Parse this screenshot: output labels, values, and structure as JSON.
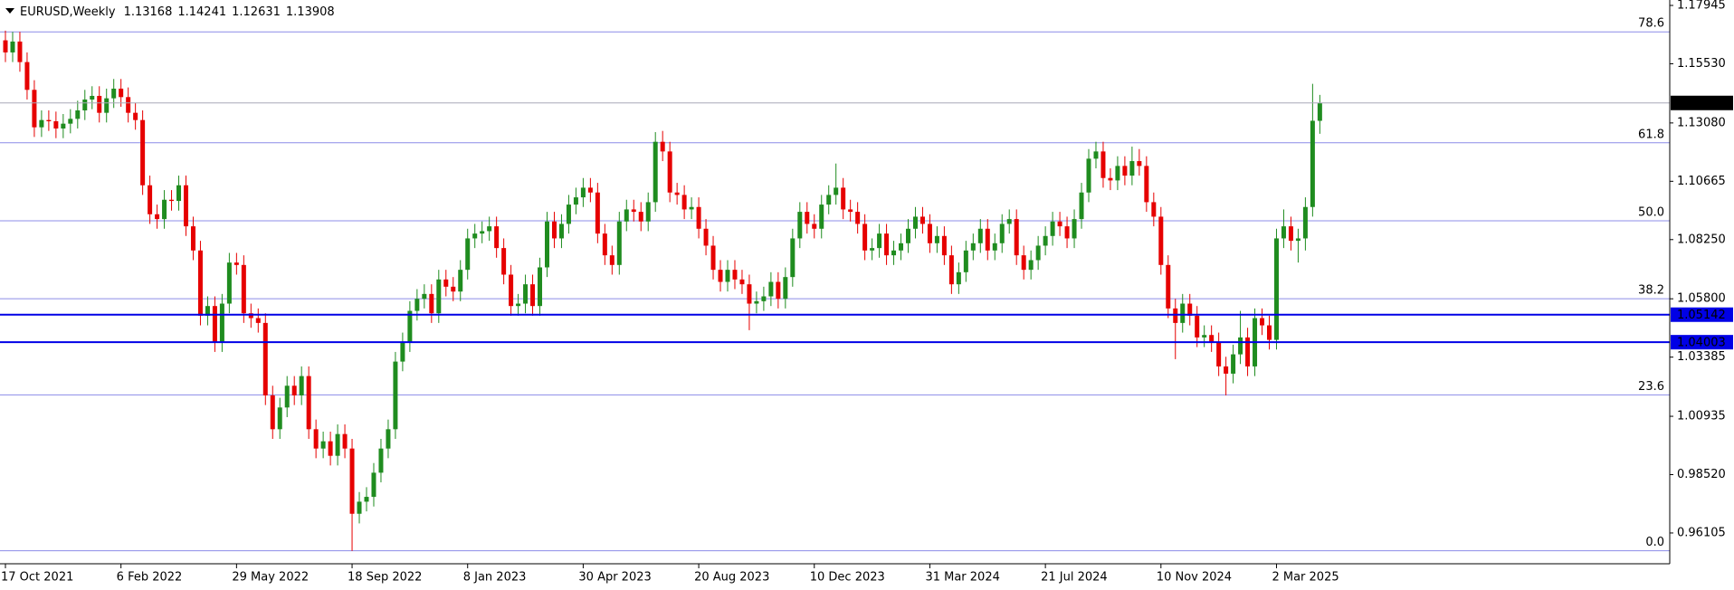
{
  "chart_data": {
    "type": "candlestick",
    "title": "EURUSD,Weekly",
    "categories": [
      "17 Oct 2021",
      null,
      null,
      null,
      null,
      null,
      null,
      null,
      null,
      null,
      null,
      null,
      null,
      null,
      null,
      null,
      "6 Feb 2022",
      null,
      null,
      null,
      null,
      null,
      null,
      null,
      null,
      null,
      null,
      null,
      null,
      null,
      null,
      null,
      "29 May 2022",
      null,
      null,
      null,
      null,
      null,
      null,
      null,
      null,
      null,
      null,
      null,
      null,
      null,
      null,
      null,
      "18 Sep 2022",
      null,
      null,
      null,
      null,
      null,
      null,
      null,
      null,
      null,
      null,
      null,
      null,
      null,
      null,
      null,
      "8 Jan 2023",
      null,
      null,
      null,
      null,
      null,
      null,
      null,
      null,
      null,
      null,
      null,
      null,
      null,
      null,
      null,
      "30 Apr 2023",
      null,
      null,
      null,
      null,
      null,
      null,
      null,
      null,
      null,
      null,
      null,
      null,
      null,
      null,
      null,
      "20 Aug 2023",
      null,
      null,
      null,
      null,
      null,
      null,
      null,
      null,
      null,
      null,
      null,
      null,
      null,
      null,
      null,
      "10 Dec 2023",
      null,
      null,
      null,
      null,
      null,
      null,
      null,
      null,
      null,
      null,
      null,
      null,
      null,
      null,
      null,
      "31 Mar 2024",
      null,
      null,
      null,
      null,
      null,
      null,
      null,
      null,
      null,
      null,
      null,
      null,
      null,
      null,
      null,
      "21 Jul 2024",
      null,
      null,
      null,
      null,
      null,
      null,
      null,
      null,
      null,
      null,
      null,
      null,
      null,
      null,
      null,
      "10 Nov 2024",
      null,
      null,
      null,
      null,
      null,
      null,
      null,
      null,
      null,
      null,
      null,
      null,
      null,
      null,
      null,
      "2 Mar 2025",
      null,
      null,
      null,
      null,
      null,
      null
    ],
    "open": [
      1.165,
      1.16,
      1.1645,
      1.156,
      1.1445,
      1.129,
      1.132,
      1.1315,
      1.1285,
      1.1305,
      1.1325,
      1.136,
      1.1405,
      1.142,
      1.135,
      1.141,
      1.145,
      1.1415,
      1.135,
      1.132,
      1.105,
      1.093,
      1.091,
      1.099,
      1.0985,
      1.105,
      1.088,
      1.078,
      1.051,
      1.055,
      1.04,
      1.056,
      1.073,
      1.072,
      1.052,
      1.05,
      1.048,
      1.018,
      1.004,
      1.013,
      1.022,
      1.018,
      1.026,
      1.004,
      0.996,
      0.999,
      0.993,
      1.002,
      0.996,
      0.969,
      0.974,
      0.976,
      0.986,
      0.996,
      1.004,
      1.032,
      1.04,
      1.053,
      1.058,
      1.06,
      1.052,
      1.066,
      1.063,
      1.061,
      1.07,
      1.083,
      1.085,
      1.086,
      1.088,
      1.079,
      1.068,
      1.055,
      1.056,
      1.064,
      1.055,
      1.071,
      1.09,
      1.083,
      1.089,
      1.097,
      1.1,
      1.104,
      1.102,
      1.085,
      1.076,
      1.072,
      1.09,
      1.095,
      1.094,
      1.09,
      1.098,
      1.123,
      1.119,
      1.102,
      1.101,
      1.095,
      1.096,
      1.087,
      1.08,
      1.07,
      1.065,
      1.07,
      1.066,
      1.064,
      1.056,
      1.057,
      1.059,
      1.065,
      1.058,
      1.067,
      1.083,
      1.094,
      1.089,
      1.087,
      1.097,
      1.101,
      1.104,
      1.095,
      1.094,
      1.089,
      1.078,
      1.079,
      1.085,
      1.076,
      1.078,
      1.081,
      1.087,
      1.092,
      1.089,
      1.081,
      1.084,
      1.076,
      1.064,
      1.069,
      1.078,
      1.081,
      1.087,
      1.078,
      1.081,
      1.089,
      1.091,
      1.076,
      1.07,
      1.074,
      1.08,
      1.084,
      1.09,
      1.088,
      1.083,
      1.091,
      1.102,
      1.116,
      1.119,
      1.108,
      1.107,
      1.113,
      1.109,
      1.115,
      1.113,
      1.098,
      1.092,
      1.072,
      1.054,
      1.048,
      1.056,
      1.051,
      1.042,
      1.043,
      1.04,
      1.03,
      1.027,
      1.035,
      1.042,
      1.03,
      1.05,
      1.047,
      1.041,
      1.083,
      1.088,
      1.082,
      1.083,
      1.096,
      1.13168
    ],
    "high": [
      1.169,
      1.1685,
      1.1685,
      1.16,
      1.1485,
      1.136,
      1.136,
      1.1355,
      1.1345,
      1.1365,
      1.14,
      1.1445,
      1.146,
      1.146,
      1.145,
      1.149,
      1.149,
      1.1455,
      1.139,
      1.136,
      1.109,
      1.097,
      1.103,
      1.103,
      1.109,
      1.109,
      1.092,
      1.082,
      1.059,
      1.059,
      1.06,
      1.077,
      1.077,
      1.076,
      1.056,
      1.054,
      1.052,
      1.022,
      1.017,
      1.026,
      1.026,
      1.03,
      1.03,
      1.008,
      1.003,
      1.003,
      1.006,
      1.006,
      1.0,
      0.978,
      0.98,
      0.99,
      1.0,
      1.008,
      1.036,
      1.044,
      1.057,
      1.062,
      1.064,
      1.064,
      1.07,
      1.07,
      1.067,
      1.074,
      1.087,
      1.089,
      1.09,
      1.092,
      1.092,
      1.083,
      1.072,
      1.06,
      1.068,
      1.068,
      1.075,
      1.094,
      1.094,
      1.093,
      1.101,
      1.104,
      1.108,
      1.108,
      1.106,
      1.089,
      1.08,
      1.094,
      1.099,
      1.099,
      1.098,
      1.102,
      1.127,
      1.1275,
      1.123,
      1.106,
      1.105,
      1.1,
      1.1,
      1.091,
      1.084,
      1.074,
      1.074,
      1.074,
      1.07,
      1.068,
      1.061,
      1.063,
      1.069,
      1.069,
      1.071,
      1.087,
      1.098,
      1.098,
      1.093,
      1.101,
      1.105,
      1.114,
      1.108,
      1.099,
      1.098,
      1.093,
      1.083,
      1.089,
      1.089,
      1.082,
      1.085,
      1.091,
      1.096,
      1.096,
      1.093,
      1.088,
      1.088,
      1.08,
      1.073,
      1.082,
      1.085,
      1.091,
      1.091,
      1.085,
      1.093,
      1.095,
      1.095,
      1.08,
      1.078,
      1.084,
      1.088,
      1.094,
      1.094,
      1.092,
      1.095,
      1.106,
      1.12,
      1.123,
      1.123,
      1.112,
      1.117,
      1.117,
      1.121,
      1.12,
      1.117,
      1.102,
      1.096,
      1.076,
      1.058,
      1.06,
      1.06,
      1.055,
      1.047,
      1.047,
      1.044,
      1.034,
      1.039,
      1.053,
      1.046,
      1.054,
      1.054,
      1.051,
      1.087,
      1.095,
      1.092,
      1.087,
      1.1,
      1.147,
      1.14241
    ],
    "low": [
      1.156,
      1.156,
      1.152,
      1.1405,
      1.125,
      1.125,
      1.1275,
      1.1245,
      1.1245,
      1.1265,
      1.1285,
      1.132,
      1.1365,
      1.131,
      1.131,
      1.137,
      1.1375,
      1.131,
      1.128,
      1.101,
      1.089,
      1.087,
      1.087,
      1.0945,
      1.0945,
      1.084,
      1.074,
      1.047,
      1.047,
      1.036,
      1.036,
      1.052,
      1.068,
      1.048,
      1.046,
      1.044,
      1.014,
      1.0,
      1.0,
      1.009,
      1.014,
      1.014,
      1.0,
      0.992,
      0.992,
      0.989,
      0.989,
      0.992,
      0.9536,
      0.965,
      0.97,
      0.972,
      0.982,
      0.992,
      1.0,
      1.028,
      1.036,
      1.049,
      1.054,
      1.048,
      1.048,
      1.059,
      1.057,
      1.057,
      1.066,
      1.079,
      1.081,
      1.082,
      1.075,
      1.064,
      1.051,
      1.051,
      1.052,
      1.051,
      1.051,
      1.067,
      1.079,
      1.079,
      1.085,
      1.093,
      1.096,
      1.098,
      1.081,
      1.072,
      1.068,
      1.068,
      1.086,
      1.09,
      1.086,
      1.086,
      1.094,
      1.115,
      1.098,
      1.097,
      1.091,
      1.091,
      1.083,
      1.076,
      1.066,
      1.061,
      1.061,
      1.062,
      1.06,
      1.045,
      1.052,
      1.053,
      1.055,
      1.054,
      1.054,
      1.063,
      1.079,
      1.085,
      1.083,
      1.083,
      1.093,
      1.097,
      1.091,
      1.09,
      1.085,
      1.074,
      1.074,
      1.075,
      1.072,
      1.072,
      1.074,
      1.077,
      1.083,
      1.085,
      1.077,
      1.077,
      1.072,
      1.06,
      1.06,
      1.065,
      1.074,
      1.077,
      1.074,
      1.074,
      1.077,
      1.085,
      1.072,
      1.066,
      1.066,
      1.07,
      1.076,
      1.08,
      1.084,
      1.079,
      1.079,
      1.087,
      1.098,
      1.112,
      1.104,
      1.103,
      1.103,
      1.105,
      1.105,
      1.109,
      1.094,
      1.088,
      1.068,
      1.05,
      1.033,
      1.044,
      1.047,
      1.038,
      1.038,
      1.036,
      1.026,
      1.018,
      1.023,
      1.031,
      1.026,
      1.026,
      1.043,
      1.037,
      1.037,
      1.079,
      1.078,
      1.073,
      1.078,
      1.092,
      1.12631
    ],
    "close": [
      1.16,
      1.1645,
      1.156,
      1.1445,
      1.129,
      1.132,
      1.1315,
      1.1285,
      1.1305,
      1.1325,
      1.136,
      1.1405,
      1.142,
      1.135,
      1.141,
      1.145,
      1.1415,
      1.135,
      1.132,
      1.105,
      1.093,
      1.091,
      1.099,
      1.0985,
      1.105,
      1.088,
      1.078,
      1.051,
      1.055,
      1.04,
      1.056,
      1.073,
      1.072,
      1.052,
      1.05,
      1.048,
      1.018,
      1.004,
      1.013,
      1.022,
      1.018,
      1.026,
      1.004,
      0.996,
      0.999,
      0.993,
      1.002,
      0.996,
      0.969,
      0.974,
      0.976,
      0.986,
      0.996,
      1.004,
      1.032,
      1.04,
      1.053,
      1.058,
      1.06,
      1.052,
      1.066,
      1.063,
      1.061,
      1.07,
      1.083,
      1.085,
      1.086,
      1.088,
      1.079,
      1.068,
      1.055,
      1.056,
      1.064,
      1.055,
      1.071,
      1.09,
      1.083,
      1.089,
      1.097,
      1.1,
      1.104,
      1.102,
      1.085,
      1.076,
      1.072,
      1.09,
      1.095,
      1.094,
      1.09,
      1.098,
      1.123,
      1.119,
      1.102,
      1.101,
      1.095,
      1.096,
      1.087,
      1.08,
      1.07,
      1.065,
      1.07,
      1.066,
      1.064,
      1.056,
      1.057,
      1.059,
      1.065,
      1.058,
      1.067,
      1.083,
      1.094,
      1.089,
      1.087,
      1.097,
      1.101,
      1.104,
      1.095,
      1.094,
      1.089,
      1.078,
      1.079,
      1.085,
      1.076,
      1.078,
      1.081,
      1.087,
      1.092,
      1.089,
      1.081,
      1.084,
      1.076,
      1.064,
      1.069,
      1.078,
      1.081,
      1.087,
      1.078,
      1.081,
      1.089,
      1.091,
      1.076,
      1.07,
      1.074,
      1.08,
      1.084,
      1.09,
      1.088,
      1.083,
      1.091,
      1.102,
      1.116,
      1.119,
      1.108,
      1.107,
      1.113,
      1.109,
      1.115,
      1.113,
      1.098,
      1.092,
      1.072,
      1.054,
      1.048,
      1.056,
      1.051,
      1.042,
      1.043,
      1.04,
      1.03,
      1.027,
      1.035,
      1.042,
      1.03,
      1.05,
      1.047,
      1.041,
      1.083,
      1.088,
      1.082,
      1.083,
      1.096,
      1.1317,
      1.13908
    ],
    "up_color": "#1f8c1f",
    "down_color": "#e60000",
    "ylim": [
      0.9483,
      1.1817
    ],
    "yticks": [
      1.17945,
      {
        "value": 1.1553,
        "label": "1.15530"
      },
      {
        "value": 1.1308,
        "label": "1.13080"
      },
      1.10665,
      {
        "value": 1.0825,
        "label": "1.08250"
      },
      {
        "value": 1.058,
        "label": "1.05800"
      },
      1.03385,
      1.00935,
      {
        "value": 0.9852,
        "label": "0.98520"
      },
      0.96105
    ],
    "fib_color": "#8c8ce8",
    "fib_levels": [
      {
        "label": "78.6",
        "value": 1.1685
      },
      {
        "label": "61.8",
        "value": 1.1226
      },
      {
        "label": "50.0",
        "value": 1.0903
      },
      {
        "label": "38.2",
        "value": 1.058
      },
      {
        "label": "23.6",
        "value": 1.0182
      },
      {
        "label": "0.0",
        "value": 0.9537
      }
    ],
    "levels": [
      {
        "value": 1.05142,
        "color": "#0000e6"
      },
      {
        "value": 1.04003,
        "color": "#0000e6"
      }
    ],
    "last_price_color": "#000000",
    "last_line_color": "#a8a8b8"
  }
}
